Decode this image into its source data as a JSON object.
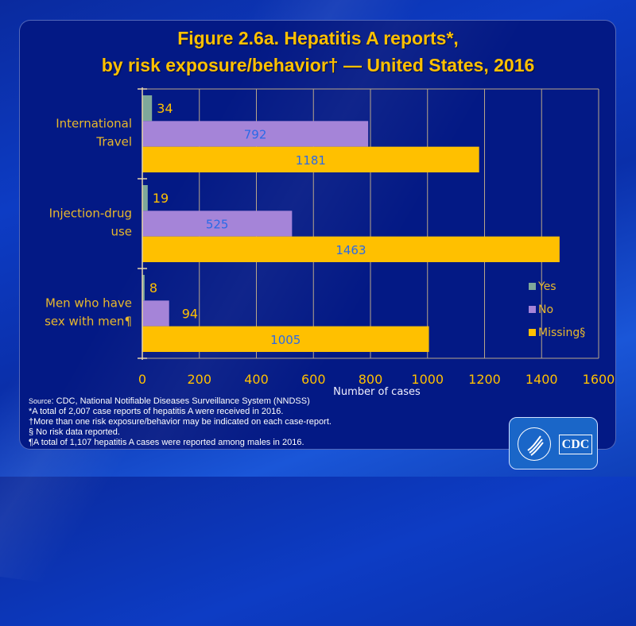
{
  "title": {
    "line1": "Figure 2.6a. Hepatitis A reports*,",
    "line2": "by risk exposure/behavior† — United States, 2016"
  },
  "chart_data": {
    "type": "bar",
    "orientation": "horizontal",
    "title": "Figure 2.6a. Hepatitis A reports*, by risk exposure/behavior† — United States, 2016",
    "categories": [
      [
        "International",
        "Travel"
      ],
      [
        "Injection-drug",
        "use"
      ],
      [
        "Men who have",
        "sex with men¶"
      ]
    ],
    "series": [
      {
        "name": "Yes",
        "color": "#7fa89a",
        "values": [
          34,
          19,
          8
        ]
      },
      {
        "name": "No",
        "color": "#a584d8",
        "values": [
          792,
          525,
          94
        ]
      },
      {
        "name": "Missing§",
        "color": "#ffc000",
        "values": [
          1181,
          1463,
          1005
        ]
      }
    ],
    "xlabel": "Number of cases",
    "ylabel": "",
    "xlim": [
      0,
      1600
    ],
    "xticks": [
      0,
      200,
      400,
      600,
      800,
      1000,
      1200,
      1400,
      1600
    ],
    "grid": true,
    "legend": "right-bottom inside plot",
    "colors": {
      "panel_bg": "#031985",
      "gridline": "#b8a68a",
      "tick_text": "#ffc000",
      "inside_value_text": "#2a6ae8"
    }
  },
  "footnotes": {
    "source_prefix": "Source",
    "source": ": CDC, National Notifiable Diseases Surveillance System (NNDSS)",
    "lines": [
      "*A total of 2,007 case reports of hepatitis A were received in 2016.",
      "†More than one risk exposure/behavior may be indicated on each case-report.",
      "§ No risk data reported.",
      "¶A total of 1,107 hepatitis A cases were reported among males in 2016."
    ]
  },
  "logo": {
    "text": "CDC",
    "icon": "hhs-eagle-icon"
  }
}
